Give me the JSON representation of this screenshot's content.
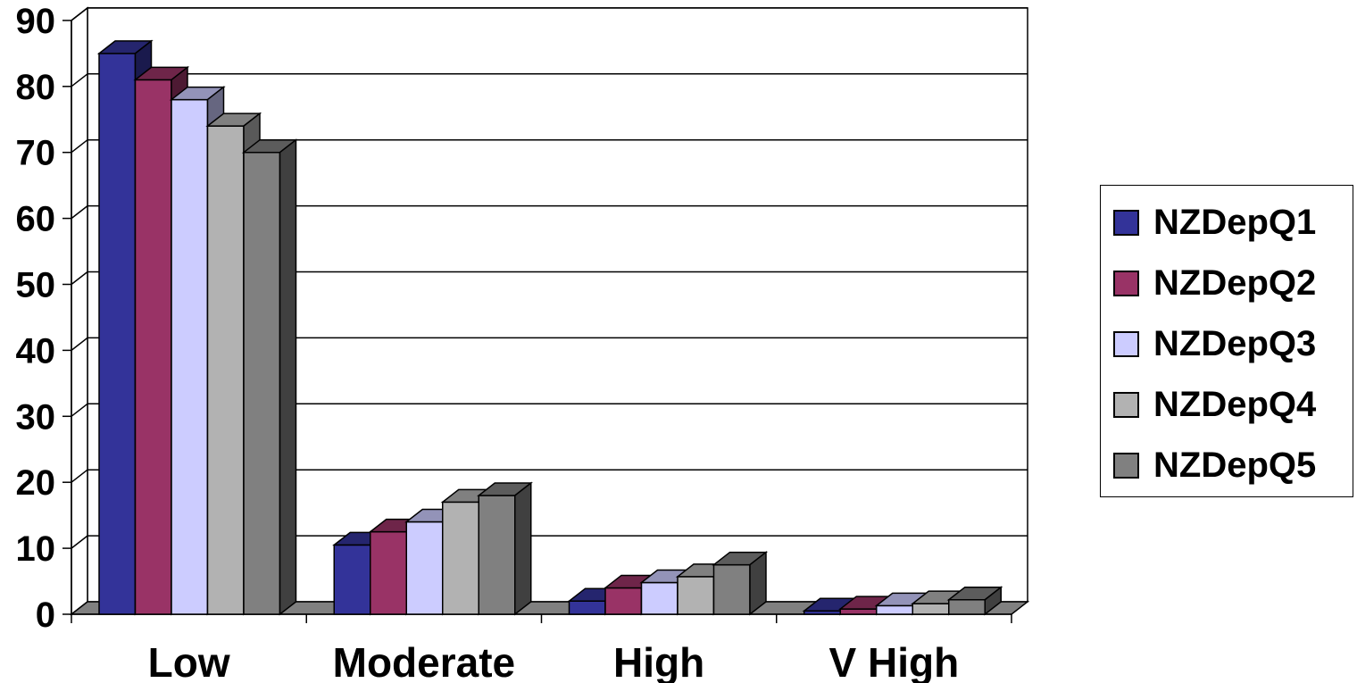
{
  "chart_data": {
    "type": "bar",
    "style": "3d-clustered-column",
    "categories": [
      "Low",
      "Moderate",
      "High",
      "V High"
    ],
    "series": [
      {
        "name": "NZDepQ1",
        "color": "#333399",
        "values": [
          85,
          10.5,
          2,
          0.5
        ]
      },
      {
        "name": "NZDepQ2",
        "color": "#993366",
        "values": [
          81,
          12.5,
          4,
          0.8
        ]
      },
      {
        "name": "NZDepQ3",
        "color": "#CCCCFF",
        "values": [
          78,
          14,
          4.8,
          1.3
        ]
      },
      {
        "name": "NZDepQ4",
        "color": "#B2B2B2",
        "values": [
          74,
          17,
          5.7,
          1.6
        ]
      },
      {
        "name": "NZDepQ5",
        "color": "#808080",
        "values": [
          70,
          18,
          7.5,
          2.2
        ]
      }
    ],
    "y_ticks": [
      "0",
      "10",
      "20",
      "30",
      "40",
      "50",
      "60",
      "70",
      "80",
      "90"
    ],
    "ylim": [
      0,
      90
    ],
    "grid": true,
    "legend_position": "right"
  }
}
